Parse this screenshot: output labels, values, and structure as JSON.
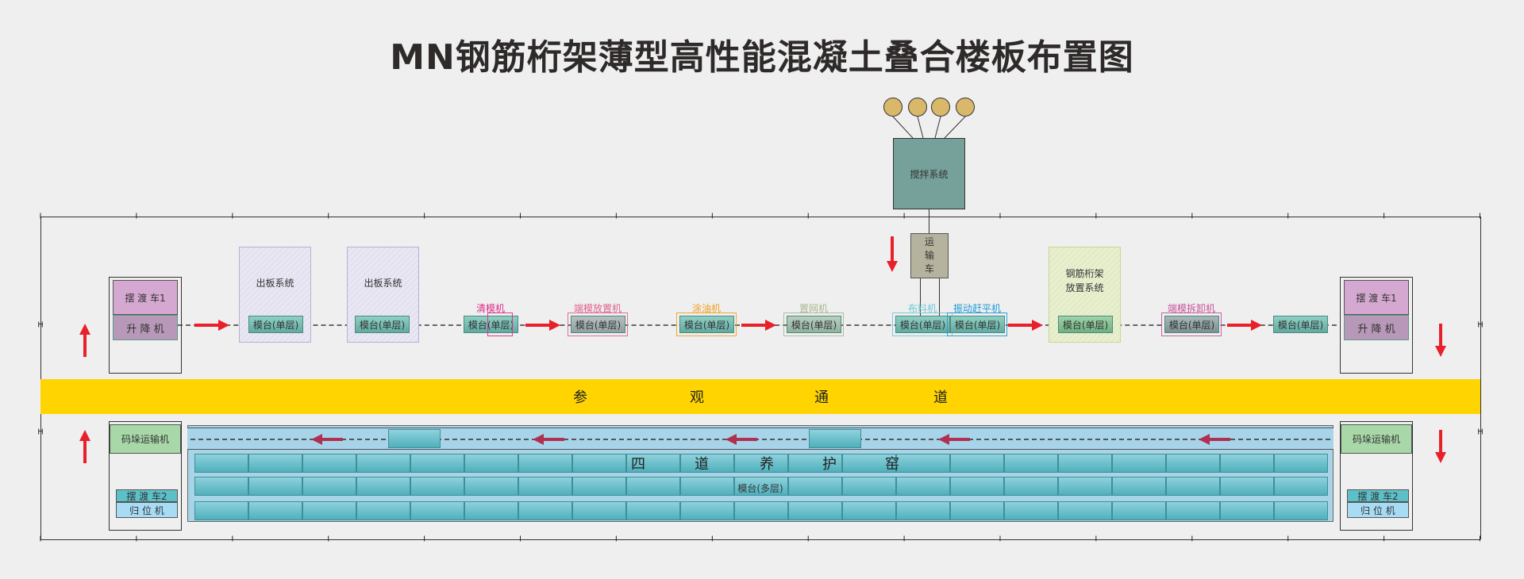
{
  "title": "MN钢筋桁架薄型高性能混凝土叠合楼板布置图",
  "mixer": {
    "label": "搅拌系统",
    "color": "#76a09a",
    "silo_count": 4,
    "silo_color": "#d9b86a"
  },
  "transport_cart": {
    "label": "运\n输\n车",
    "color": "#b5b39e"
  },
  "left_station": {
    "ferry1": "摆 渡 车1",
    "lift": "升 降 机",
    "stacker": "码垛运输机",
    "ferry2": "摆 渡 车2",
    "return": "归 位 机"
  },
  "right_station": {
    "ferry1": "摆 渡 车1",
    "lift": "升 降 机",
    "stacker": "码垛运输机",
    "ferry2": "摆 渡 车2",
    "return": "归 位 机"
  },
  "systems": [
    {
      "label": "出板系统"
    },
    {
      "label": "出板系统"
    },
    {
      "label": "钢筋桁架\n放置系统"
    }
  ],
  "pallet_label": "模台(单层)",
  "machines": [
    {
      "label": "清模机",
      "color": "#e0288a"
    },
    {
      "label": "端模放置机",
      "color": "#e0608a"
    },
    {
      "label": "涂油机",
      "color": "#f0a020"
    },
    {
      "label": "置网机",
      "color": "#a8b890"
    },
    {
      "label": "布料机",
      "color": "#6cc8d8"
    },
    {
      "label": "振动赶平机",
      "color": "#1e9ad8"
    },
    {
      "label": "端模拆卸机",
      "color": "#c8509a"
    }
  ],
  "aisle": {
    "chars": [
      "参",
      "观",
      "通",
      "道"
    ],
    "color": "#ffd400"
  },
  "kiln": {
    "chars": [
      "四",
      "道",
      "养",
      "护",
      "窑"
    ],
    "pallet_label": "模台(多层)"
  },
  "colors": {
    "arrow_red": "#e8202a",
    "arrow_dark": "#b03050",
    "ferry1": "#d4a8d0",
    "lift": "#b898b8",
    "stacker": "#a8d8a8",
    "ferry2": "#5cc0c8",
    "return": "#a8dcf4",
    "track": "#a8d4e8"
  }
}
